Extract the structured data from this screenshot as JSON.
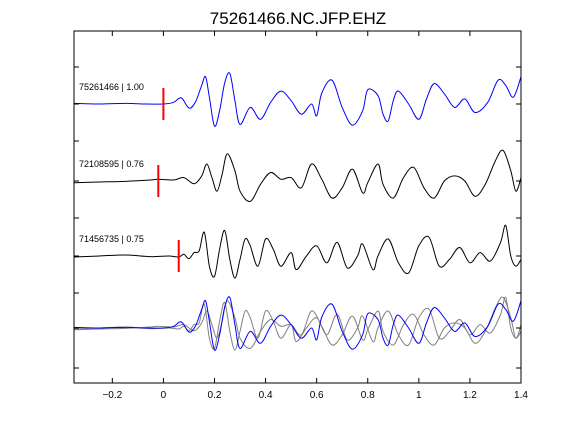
{
  "chart_data": {
    "type": "line",
    "title": "75261466.NC.JFP.EHZ",
    "xlabel": "",
    "ylabel": "",
    "xlim": [
      -0.35,
      1.4
    ],
    "x_ticks": [
      -0.2,
      0,
      0.2,
      0.4,
      0.6,
      0.8,
      1,
      1.2,
      1.4
    ],
    "x_tick_labels": [
      "−0.2",
      "0",
      "0.2",
      "0.4",
      "0.6",
      "0.8",
      "1",
      "1.2",
      "1.4"
    ],
    "grid": false,
    "colors": {
      "primary": "#0000ff",
      "secondary": "#000000",
      "overlay_gray": "#808080",
      "pick": "#ff0000"
    },
    "series": [
      {
        "label": "75261466 | 1.00",
        "color": "#0000ff",
        "pick_time": 0.0,
        "trace": [
          [
            -0.35,
            0.02
          ],
          [
            -0.25,
            0.0
          ],
          [
            -0.15,
            0.02
          ],
          [
            -0.07,
            0.0
          ],
          [
            0.0,
            0.0
          ],
          [
            0.04,
            0.05
          ],
          [
            0.07,
            0.18
          ],
          [
            0.1,
            -0.12
          ],
          [
            0.125,
            0.05
          ],
          [
            0.15,
            0.55
          ],
          [
            0.165,
            0.8
          ],
          [
            0.18,
            0.2
          ],
          [
            0.2,
            -0.65
          ],
          [
            0.22,
            -0.2
          ],
          [
            0.24,
            0.62
          ],
          [
            0.26,
            0.9
          ],
          [
            0.28,
            0.1
          ],
          [
            0.3,
            -0.6
          ],
          [
            0.34,
            -0.1
          ],
          [
            0.38,
            -0.45
          ],
          [
            0.42,
            0.05
          ],
          [
            0.46,
            0.38
          ],
          [
            0.5,
            0.1
          ],
          [
            0.54,
            -0.3
          ],
          [
            0.58,
            0.0
          ],
          [
            0.6,
            -0.35
          ],
          [
            0.62,
            0.32
          ],
          [
            0.66,
            0.7
          ],
          [
            0.7,
            -0.1
          ],
          [
            0.74,
            -0.62
          ],
          [
            0.78,
            -0.2
          ],
          [
            0.8,
            0.42
          ],
          [
            0.84,
            0.25
          ],
          [
            0.86,
            -0.3
          ],
          [
            0.88,
            -0.5
          ],
          [
            0.9,
            0.1
          ],
          [
            0.92,
            0.38
          ],
          [
            0.96,
            0.0
          ],
          [
            1.0,
            -0.45
          ],
          [
            1.03,
            0.15
          ],
          [
            1.06,
            0.6
          ],
          [
            1.1,
            0.3
          ],
          [
            1.14,
            -0.1
          ],
          [
            1.18,
            0.15
          ],
          [
            1.22,
            -0.25
          ],
          [
            1.27,
            0.05
          ],
          [
            1.31,
            0.7
          ],
          [
            1.34,
            0.55
          ],
          [
            1.37,
            0.2
          ],
          [
            1.4,
            0.8
          ]
        ]
      },
      {
        "label": "72108595 | 0.76",
        "color": "#000000",
        "pick_time": -0.02,
        "trace": [
          [
            -0.35,
            -0.05
          ],
          [
            -0.25,
            -0.03
          ],
          [
            -0.15,
            -0.01
          ],
          [
            -0.05,
            0.03
          ],
          [
            -0.02,
            0.05
          ],
          [
            0.04,
            0.03
          ],
          [
            0.08,
            0.1
          ],
          [
            0.12,
            -0.08
          ],
          [
            0.15,
            0.15
          ],
          [
            0.17,
            0.5
          ],
          [
            0.19,
            0.1
          ],
          [
            0.21,
            -0.3
          ],
          [
            0.23,
            0.2
          ],
          [
            0.25,
            0.8
          ],
          [
            0.28,
            0.3
          ],
          [
            0.3,
            -0.3
          ],
          [
            0.34,
            -0.6
          ],
          [
            0.38,
            -0.1
          ],
          [
            0.42,
            0.25
          ],
          [
            0.46,
            0.05
          ],
          [
            0.5,
            0.1
          ],
          [
            0.54,
            -0.2
          ],
          [
            0.58,
            0.5
          ],
          [
            0.62,
            0.05
          ],
          [
            0.66,
            -0.5
          ],
          [
            0.7,
            -0.2
          ],
          [
            0.74,
            0.35
          ],
          [
            0.78,
            -0.35
          ],
          [
            0.8,
            -0.05
          ],
          [
            0.84,
            0.5
          ],
          [
            0.86,
            -0.1
          ],
          [
            0.9,
            -0.5
          ],
          [
            0.94,
            0.1
          ],
          [
            0.98,
            0.4
          ],
          [
            1.02,
            -0.2
          ],
          [
            1.06,
            -0.5
          ],
          [
            1.1,
            0.0
          ],
          [
            1.14,
            0.15
          ],
          [
            1.18,
            0.0
          ],
          [
            1.22,
            -0.45
          ],
          [
            1.26,
            -0.1
          ],
          [
            1.3,
            0.6
          ],
          [
            1.33,
            0.9
          ],
          [
            1.36,
            0.3
          ],
          [
            1.38,
            -0.3
          ],
          [
            1.4,
            0.1
          ]
        ]
      },
      {
        "label": "71456735 | 0.75",
        "color": "#000000",
        "pick_time": 0.06,
        "trace": [
          [
            -0.35,
            -0.03
          ],
          [
            -0.25,
            0.0
          ],
          [
            -0.15,
            0.03
          ],
          [
            -0.05,
            -0.02
          ],
          [
            0.02,
            0.0
          ],
          [
            0.06,
            -0.03
          ],
          [
            0.08,
            0.05
          ],
          [
            0.1,
            -0.08
          ],
          [
            0.12,
            0.1
          ],
          [
            0.14,
            0.15
          ],
          [
            0.16,
            0.7
          ],
          [
            0.18,
            -0.3
          ],
          [
            0.2,
            -0.6
          ],
          [
            0.22,
            0.2
          ],
          [
            0.24,
            0.75
          ],
          [
            0.26,
            -0.1
          ],
          [
            0.28,
            -0.65
          ],
          [
            0.3,
            -0.1
          ],
          [
            0.32,
            0.5
          ],
          [
            0.34,
            0.3
          ],
          [
            0.37,
            -0.3
          ],
          [
            0.4,
            0.5
          ],
          [
            0.43,
            0.2
          ],
          [
            0.46,
            -0.3
          ],
          [
            0.5,
            0.1
          ],
          [
            0.52,
            -0.4
          ],
          [
            0.56,
            0.0
          ],
          [
            0.6,
            0.3
          ],
          [
            0.64,
            -0.2
          ],
          [
            0.68,
            0.4
          ],
          [
            0.72,
            -0.35
          ],
          [
            0.76,
            0.0
          ],
          [
            0.78,
            0.35
          ],
          [
            0.82,
            -0.4
          ],
          [
            0.84,
            0.0
          ],
          [
            0.88,
            0.5
          ],
          [
            0.92,
            -0.2
          ],
          [
            0.96,
            -0.5
          ],
          [
            1.0,
            0.3
          ],
          [
            1.04,
            0.55
          ],
          [
            1.08,
            -0.3
          ],
          [
            1.12,
            -0.1
          ],
          [
            1.16,
            0.25
          ],
          [
            1.2,
            -0.2
          ],
          [
            1.24,
            0.1
          ],
          [
            1.28,
            -0.15
          ],
          [
            1.32,
            0.4
          ],
          [
            1.34,
            0.9
          ],
          [
            1.36,
            0.0
          ],
          [
            1.38,
            -0.3
          ],
          [
            1.4,
            -0.1
          ]
        ]
      }
    ],
    "overlay": {
      "traces": [
        {
          "color": "#0000ff",
          "pick_time": 0.0,
          "source": 0
        },
        {
          "color": "#808080",
          "pick_time": -0.02,
          "source": 1
        },
        {
          "color": "#808080",
          "pick_time": 0.06,
          "source": 2
        }
      ]
    }
  }
}
